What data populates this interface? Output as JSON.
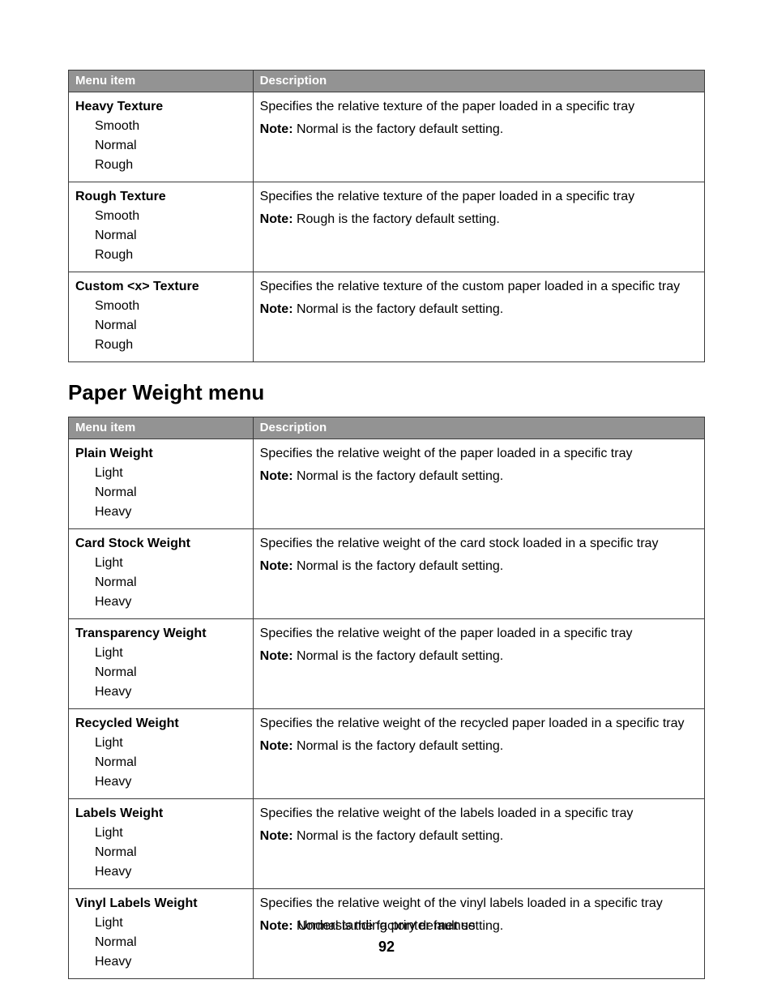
{
  "texture_table": {
    "columns": [
      "Menu item",
      "Description"
    ],
    "rows": [
      {
        "title": "Heavy Texture",
        "options": [
          "Smooth",
          "Normal",
          "Rough"
        ],
        "desc": "Specifies the relative texture of the paper loaded in a specific tray",
        "note_label": "Note:",
        "note_text": " Normal is the factory default setting."
      },
      {
        "title": "Rough Texture",
        "options": [
          "Smooth",
          "Normal",
          "Rough"
        ],
        "desc": "Specifies the relative texture of the paper loaded in a specific tray",
        "note_label": "Note:",
        "note_text": " Rough is the factory default setting."
      },
      {
        "title": "Custom <x> Texture",
        "options": [
          "Smooth",
          "Normal",
          "Rough"
        ],
        "desc": "Specifies the relative texture of the custom paper loaded in a specific tray",
        "note_label": "Note:",
        "note_text": " Normal is the factory default setting."
      }
    ]
  },
  "section_heading": "Paper Weight menu",
  "weight_table": {
    "columns": [
      "Menu item",
      "Description"
    ],
    "rows": [
      {
        "title": "Plain Weight",
        "options": [
          "Light",
          "Normal",
          "Heavy"
        ],
        "desc": "Specifies the relative weight of the paper loaded in a specific tray",
        "note_label": "Note:",
        "note_text": " Normal is the factory default setting."
      },
      {
        "title": "Card Stock Weight",
        "options": [
          "Light",
          "Normal",
          "Heavy"
        ],
        "desc": "Specifies the relative weight of the card stock loaded in a specific tray",
        "note_label": "Note:",
        "note_text": " Normal is the factory default setting."
      },
      {
        "title": "Transparency Weight",
        "options": [
          "Light",
          "Normal",
          "Heavy"
        ],
        "desc": "Specifies the relative weight of the paper loaded in a specific tray",
        "note_label": "Note:",
        "note_text": " Normal is the factory default setting."
      },
      {
        "title": "Recycled Weight",
        "options": [
          "Light",
          "Normal",
          "Heavy"
        ],
        "desc": "Specifies the relative weight of the recycled paper loaded in a specific tray",
        "note_label": "Note:",
        "note_text": " Normal is the factory default setting."
      },
      {
        "title": "Labels Weight",
        "options": [
          "Light",
          "Normal",
          "Heavy"
        ],
        "desc": "Specifies the relative weight of the labels loaded in a specific tray",
        "note_label": "Note:",
        "note_text": " Normal is the factory default setting."
      },
      {
        "title": "Vinyl Labels Weight",
        "options": [
          "Light",
          "Normal",
          "Heavy"
        ],
        "desc": "Specifies the relative weight of the vinyl labels loaded in a specific tray",
        "note_label": "Note:",
        "note_text": " Normal is the factory default setting."
      }
    ]
  },
  "footer": {
    "title": "Understanding printer menus",
    "page": "92"
  }
}
